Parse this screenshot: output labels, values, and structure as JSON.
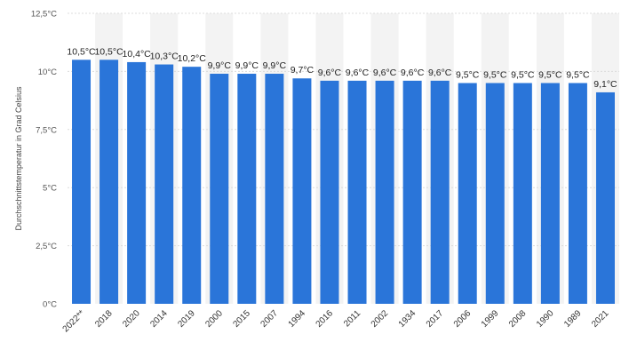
{
  "chart_data": {
    "type": "bar",
    "categories": [
      "2022**",
      "2018",
      "2020",
      "2014",
      "2019",
      "2000",
      "2015",
      "2007",
      "1994",
      "2016",
      "2011",
      "2002",
      "1934",
      "2017",
      "2006",
      "1999",
      "2008",
      "1990",
      "1989",
      "2021"
    ],
    "values": [
      10.5,
      10.5,
      10.4,
      10.3,
      10.2,
      9.9,
      9.9,
      9.9,
      9.7,
      9.6,
      9.6,
      9.6,
      9.6,
      9.6,
      9.5,
      9.5,
      9.5,
      9.5,
      9.5,
      9.1
    ],
    "data_labels": [
      "10,5°C",
      "10,5°C",
      "10,4°C",
      "10,3°C",
      "10,2°C",
      "9,9°C",
      "9,9°C",
      "9,9°C",
      "9,7°C",
      "9,6°C",
      "9,6°C",
      "9,6°C",
      "9,6°C",
      "9,6°C",
      "9,5°C",
      "9,5°C",
      "9,5°C",
      "9,5°C",
      "9,5°C",
      "9,1°C"
    ],
    "ylabel": "Durchschnittstemperatur in Grad Celsius",
    "ylim": [
      0,
      12.5
    ],
    "yticks": [
      0,
      2.5,
      5,
      7.5,
      10,
      12.5
    ],
    "ytick_labels": [
      "0°C",
      "2,5°C",
      "5°C",
      "7,5°C",
      "10°C",
      "12,5°C"
    ],
    "grid": true,
    "legend": "none",
    "bar_color": "#2a75d9"
  }
}
